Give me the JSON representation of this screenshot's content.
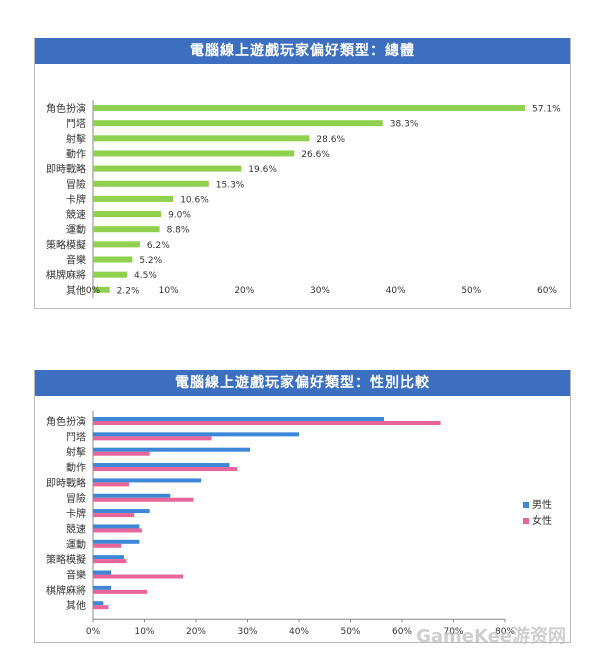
{
  "chart_data": [
    {
      "type": "bar",
      "orientation": "horizontal",
      "title": "電腦線上遊戲玩家偏好類型：總體",
      "categories": [
        "角色扮演",
        "鬥塔",
        "射擊",
        "動作",
        "即時戰略",
        "冒險",
        "卡牌",
        "競速",
        "運動",
        "策略模擬",
        "音樂",
        "棋牌麻將",
        "其他"
      ],
      "values": [
        57.1,
        38.3,
        28.6,
        26.6,
        19.6,
        15.3,
        10.6,
        9.0,
        8.8,
        6.2,
        5.2,
        4.5,
        2.2
      ],
      "value_labels": [
        "57.1%",
        "38.3%",
        "28.6%",
        "26.6%",
        "19.6%",
        "15.3%",
        "10.6%",
        "9.0%",
        "8.8%",
        "6.2%",
        "5.2%",
        "4.5%",
        "2.2%"
      ],
      "xlim": [
        0,
        60
      ],
      "xticks": [
        0,
        10,
        20,
        30,
        40,
        50,
        60
      ],
      "xtick_labels": [
        "0%",
        "10%",
        "20%",
        "30%",
        "40%",
        "50%",
        "60%"
      ],
      "color": "#8fd14f",
      "grid": false
    },
    {
      "type": "bar",
      "orientation": "horizontal",
      "title": "電腦線上遊戲玩家偏好類型：性別比較",
      "categories": [
        "角色扮演",
        "鬥塔",
        "射擊",
        "動作",
        "即時戰略",
        "冒險",
        "卡牌",
        "競速",
        "運動",
        "策略模擬",
        "音樂",
        "棋牌麻將",
        "其他"
      ],
      "series": [
        {
          "name": "男性",
          "color": "#3d87d8",
          "values": [
            56.5,
            40.0,
            30.5,
            26.5,
            21.0,
            15.0,
            11.0,
            9.0,
            9.0,
            6.0,
            3.5,
            3.5,
            2.0
          ]
        },
        {
          "name": "女性",
          "color": "#e8649a",
          "values": [
            67.5,
            23.0,
            11.0,
            28.0,
            7.0,
            19.5,
            8.0,
            9.5,
            5.5,
            6.5,
            17.5,
            10.5,
            3.0
          ]
        }
      ],
      "xlim": [
        0,
        80
      ],
      "xticks": [
        0,
        10,
        20,
        30,
        40,
        50,
        60,
        70,
        80
      ],
      "xtick_labels": [
        "0%",
        "10%",
        "20%",
        "30%",
        "40%",
        "50%",
        "60%",
        "70%",
        "80%"
      ],
      "legend_position": "right",
      "grid": false
    }
  ],
  "watermark": "GameKee游资网"
}
